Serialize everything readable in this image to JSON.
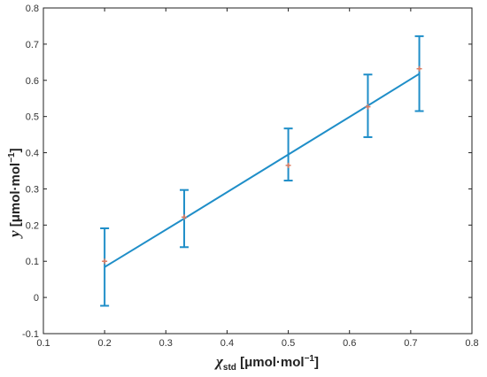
{
  "chart_data": {
    "type": "scatter",
    "xlabel": {
      "symbol": "χ",
      "subscript": "std",
      "unit_prefix": " [μmol·mol",
      "unit_exp": "−1",
      "unit_suffix": "]"
    },
    "ylabel": {
      "symbol": "y",
      "unit_prefix": " [μmol·mol",
      "unit_exp": "−1",
      "unit_suffix": "]"
    },
    "xlim": [
      0.1,
      0.8
    ],
    "ylim": [
      -0.1,
      0.8
    ],
    "xticks": [
      "0.1",
      "0.2",
      "0.3",
      "0.4",
      "0.5",
      "0.6",
      "0.7",
      "0.8"
    ],
    "yticks": [
      "-0.1",
      "0",
      "0.1",
      "0.2",
      "0.3",
      "0.4",
      "0.5",
      "0.6",
      "0.7",
      "0.8"
    ],
    "grid": false,
    "points": [
      {
        "x": 0.2,
        "y": 0.1
      },
      {
        "x": 0.33,
        "y": 0.222
      },
      {
        "x": 0.5,
        "y": 0.365
      },
      {
        "x": 0.63,
        "y": 0.527
      },
      {
        "x": 0.714,
        "y": 0.632
      }
    ],
    "fit": {
      "x": [
        0.2,
        0.33,
        0.5,
        0.63,
        0.714
      ],
      "y": [
        0.084,
        0.218,
        0.395,
        0.53,
        0.618
      ]
    },
    "error_bars": [
      {
        "x": 0.2,
        "low": -0.023,
        "high": 0.191
      },
      {
        "x": 0.33,
        "low": 0.139,
        "high": 0.297
      },
      {
        "x": 0.5,
        "low": 0.323,
        "high": 0.467
      },
      {
        "x": 0.63,
        "low": 0.443,
        "high": 0.616
      },
      {
        "x": 0.714,
        "low": 0.515,
        "high": 0.722
      }
    ],
    "colors": {
      "line": "#1f8ec8",
      "points": "#e07a5f",
      "axis": "#222222"
    }
  }
}
